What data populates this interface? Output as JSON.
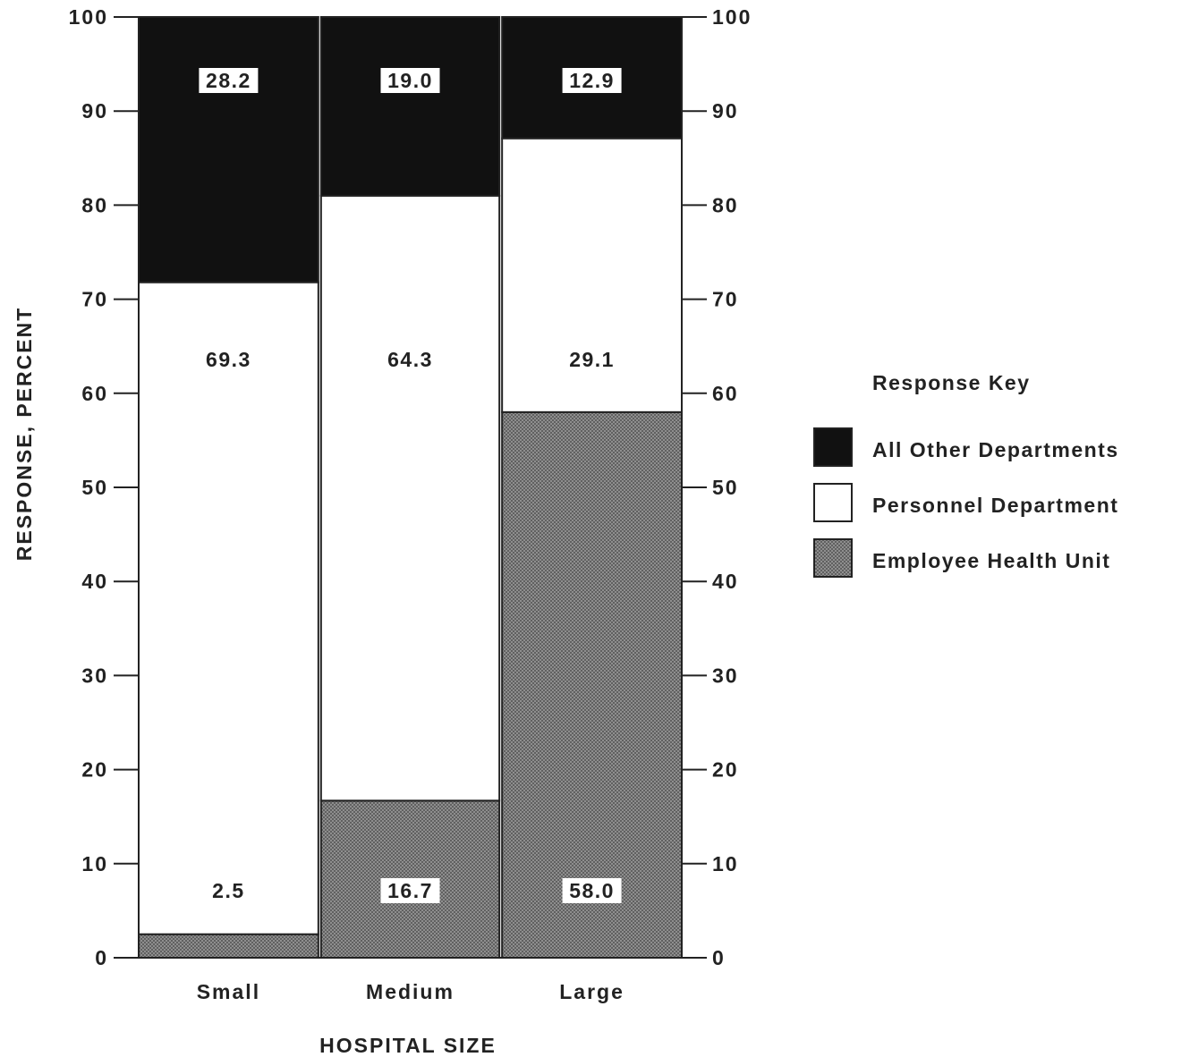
{
  "chart_data": {
    "type": "bar",
    "stacked": true,
    "categories": [
      "Small",
      "Medium",
      "Large"
    ],
    "series": [
      {
        "name": "Employee Health Unit",
        "values": [
          2.5,
          16.7,
          58.0
        ],
        "color": "#8c8c8c",
        "pattern": "crosshatch"
      },
      {
        "name": "Personnel Department",
        "values": [
          69.3,
          64.3,
          29.1
        ],
        "color": "#ffffff"
      },
      {
        "name": "All Other Departments",
        "values": [
          28.2,
          19.0,
          12.9
        ],
        "color": "#111111"
      }
    ],
    "data_labels": {
      "Employee Health Unit": [
        "2.5",
        "16.7",
        "58.0"
      ],
      "Personnel Department": [
        "69.3",
        "64.3",
        "29.1"
      ],
      "All Other Departments": [
        "28.2",
        "19.0",
        "12.9"
      ]
    },
    "xlabel": "HOSPITAL SIZE",
    "ylabel": "RESPONSE, PERCENT",
    "ylim": [
      0,
      100
    ],
    "yticks": [
      0,
      10,
      20,
      30,
      40,
      50,
      60,
      70,
      80,
      90,
      100
    ],
    "right_axis": true,
    "grid": false,
    "legend": {
      "title": "Response Key",
      "placement": "right",
      "order": [
        "All Other Departments",
        "Personnel Department",
        "Employee Health Unit"
      ]
    }
  }
}
